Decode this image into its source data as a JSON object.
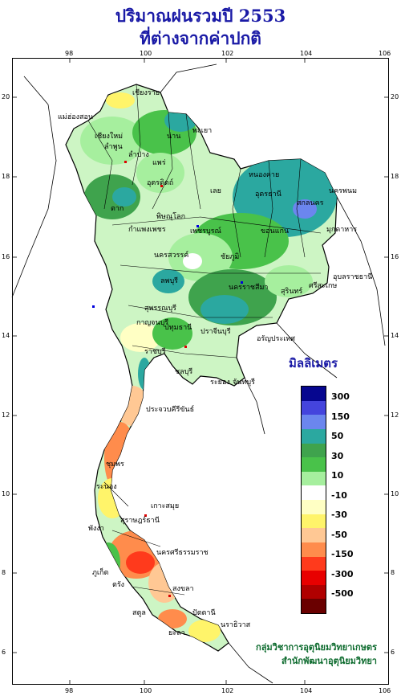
{
  "title_line1": "ปริมาณฝนรวมปี  2553",
  "title_line2": "ที่ต่างจากค่าปกติ",
  "lon_ticks": [
    "98",
    "100",
    "102",
    "104",
    "106"
  ],
  "lat_ticks": [
    "20",
    "18",
    "16",
    "14",
    "12",
    "10",
    "8",
    "6"
  ],
  "legend": {
    "title": "มิลลิเมตร",
    "labels": [
      "300",
      "150",
      "50",
      "30",
      "10",
      "-10",
      "-30",
      "-50",
      "-150",
      "-300",
      "-500"
    ],
    "colors": [
      "#06068f",
      "#4444dd",
      "#6b86ee",
      "#2ba8a0",
      "#3fa34d",
      "#49c24a",
      "#a6ef9e",
      "#ffffff",
      "#ffffc4",
      "#fff46a",
      "#ffc894",
      "#ff8c4c",
      "#ff3a1c",
      "#e80000",
      "#b00000",
      "#6a0000"
    ]
  },
  "credit_line1": "กลุ่มวิชาการอุตุนิยมวิทยาเกษตร",
  "credit_line2": "สำนักพัฒนาอุตุนิยมวิทยา",
  "provinces": [
    "เชียงราย",
    "แม่ฮ่องสอน",
    "เชียงใหม่",
    "น่าน",
    "ลำพูน",
    "ลำปาง",
    "แพร่",
    "พะเยา",
    "อุตรดิตถ์",
    "หนองคาย",
    "อุดรธานี",
    "สกลนคร",
    "นครพนม",
    "เลย",
    "ตาก",
    "พิษณุโลก",
    "กำแพงเพชร",
    "เพชรบูรณ์",
    "ขอนแก่น",
    "มุกดาหาร",
    "นครสวรรค์",
    "ชัยภูมิ",
    "อุบลราชธานี",
    "ลพบุรี",
    "นครราชสีมา",
    "สุรินทร์",
    "ศรีสะเกษ",
    "กาญจนบุรี",
    "สุพรรณบุรี",
    "ปทุมธานี",
    "ปราจีนบุรี",
    "อรัญประเทศ",
    "ราชบุรี",
    "ชลบุรี",
    "ระยอง",
    "จันทบุรี",
    "ประจวบคีรีขันธ์",
    "ชุมพร",
    "ระนอง",
    "เกาะสมุย",
    "สุราษฎร์ธานี",
    "พังงา",
    "ภูเก็ต",
    "นครศรีธรรมราช",
    "ตรัง",
    "สงขลา",
    "สตูล",
    "ปัตตานี",
    "ยะลา",
    "นราธิวาส"
  ]
}
